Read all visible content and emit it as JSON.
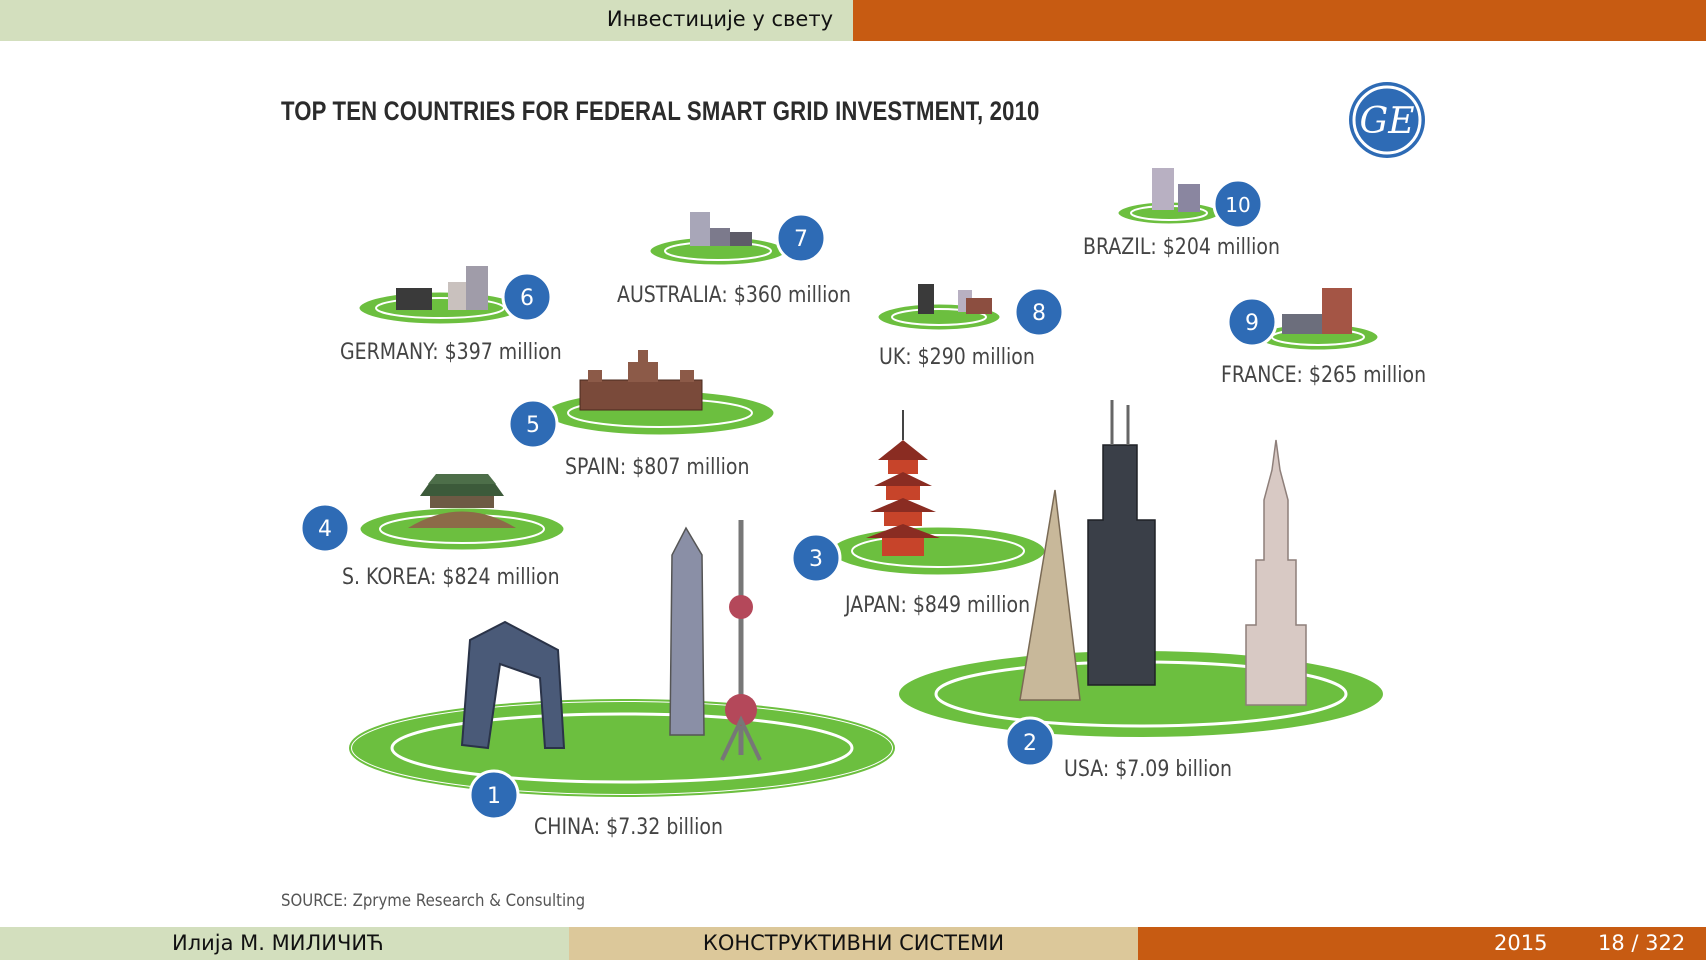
{
  "header": {
    "section_title": "Инвестиције у свету"
  },
  "slide": {
    "title": "TOP TEN COUNTRIES FOR FEDERAL SMART GRID INVESTMENT, 2010",
    "source": "SOURCE: Zpryme Research & Consulting",
    "logo_text": "GE",
    "countries": [
      {
        "rank": "1",
        "label": "CHINA: $7.32 billion"
      },
      {
        "rank": "2",
        "label": "USA: $7.09 billion"
      },
      {
        "rank": "3",
        "label": "JAPAN: $849 million"
      },
      {
        "rank": "4",
        "label": "S. KOREA: $824 million"
      },
      {
        "rank": "5",
        "label": "SPAIN: $807 million"
      },
      {
        "rank": "6",
        "label": "GERMANY: $397 million"
      },
      {
        "rank": "7",
        "label": "AUSTRALIA: $360 million"
      },
      {
        "rank": "8",
        "label": "UK: $290 million"
      },
      {
        "rank": "9",
        "label": "FRANCE: $265 million"
      },
      {
        "rank": "10",
        "label": "BRAZIL: $204 million"
      }
    ]
  },
  "footer": {
    "author": "Илија М. МИЛИЧИЋ",
    "course": "КОНСТРУКТИВНИ СИСТЕМИ",
    "year": "2015",
    "page": "18 / 322"
  },
  "colors": {
    "green_bar": "#d3dfbe",
    "orange_bar": "#c75b12",
    "badge_blue": "#2e6bb5",
    "grid_green": "#6cbf3f"
  }
}
